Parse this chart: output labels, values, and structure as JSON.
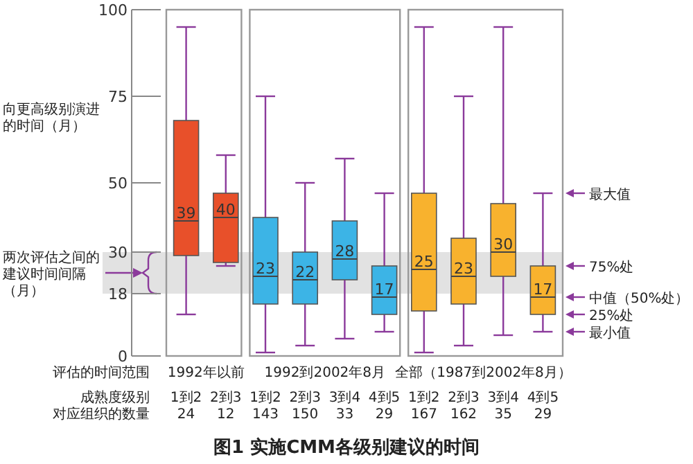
{
  "chart_data": {
    "type": "box",
    "title": "图1 实施CMM各级别建议的时间",
    "ylabel": "向更高级别演进的时间（月）",
    "categories": [
      "1到2\n24",
      "2到3\n12",
      "1到2\n143",
      "2到3\n150",
      "3到4\n33",
      "4到5\n29",
      "1到2\n167",
      "2到3\n162",
      "3到4\n35",
      "4到5\n29"
    ],
    "boxes": [
      {
        "low": 12,
        "q1": 29,
        "median": 39,
        "q3": 68,
        "high": 95
      },
      {
        "low": 26,
        "q1": 27,
        "median": 40,
        "q3": 47,
        "high": 58
      },
      {
        "low": 1,
        "q1": 15,
        "median": 23,
        "q3": 40,
        "high": 75
      },
      {
        "low": 3,
        "q1": 15,
        "median": 22,
        "q3": 30,
        "high": 50
      },
      {
        "low": 5,
        "q1": 22,
        "median": 28,
        "q3": 39,
        "high": 57
      },
      {
        "low": 7,
        "q1": 12,
        "median": 17,
        "q3": 26,
        "high": 47
      },
      {
        "low": 1,
        "q1": 13,
        "median": 25,
        "q3": 47,
        "high": 95
      },
      {
        "low": 3,
        "q1": 15,
        "median": 23,
        "q3": 34,
        "high": 75
      },
      {
        "low": 6,
        "q1": 23,
        "median": 30,
        "q3": 44,
        "high": 95
      },
      {
        "low": 7,
        "q1": 12,
        "median": 17,
        "q3": 26,
        "high": 47
      }
    ],
    "colors": [
      "#e8502a",
      "#e8502a",
      "#3cb4e6",
      "#3cb4e6",
      "#3cb4e6",
      "#3cb4e6",
      "#f8b22e",
      "#f8b22e",
      "#f8b22e",
      "#f8b22e"
    ],
    "value_labels": [
      "39",
      "40",
      "23",
      "22",
      "28",
      "17",
      "25",
      "23",
      "30",
      "17"
    ],
    "ylim": [
      0,
      100
    ],
    "yticks": [
      0,
      18,
      30,
      50,
      75,
      100
    ],
    "bands": [
      {
        "axis": "y",
        "from": 18,
        "to": 30,
        "label": "两次评估之间的建议时间间隔（月）",
        "color": "#d6d6d6"
      }
    ],
    "annotations": [
      "评估的时间范围",
      "成熟度级别",
      "对应组织的数量",
      "1992年以前",
      "1992到2002年8月",
      "全部（1987到2002年8月）",
      "最大值",
      "75%处",
      "中值（50%处）",
      "25%处",
      "最小值"
    ]
  }
}
